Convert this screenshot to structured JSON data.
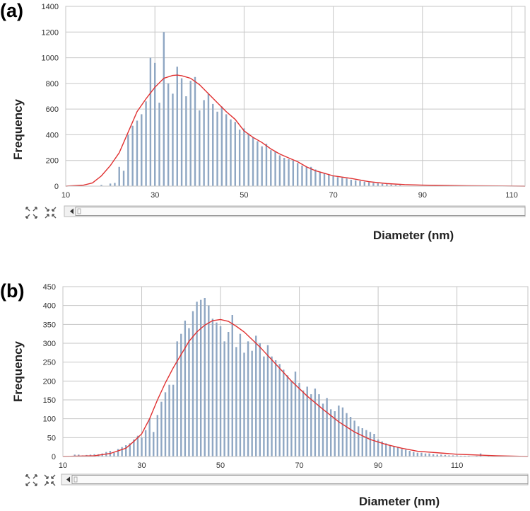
{
  "chart_data": [
    {
      "type": "bar",
      "panel_label": "(a)",
      "xlabel": "Diameter (nm)",
      "ylabel": "Frequency",
      "xlim": [
        10,
        113
      ],
      "ylim": [
        0,
        1400
      ],
      "xticks": [
        10,
        30,
        50,
        70,
        90,
        110
      ],
      "yticks": [
        0,
        200,
        400,
        600,
        800,
        1000,
        1200,
        1400
      ],
      "grid": true,
      "series": [
        {
          "name": "histogram",
          "type": "bar",
          "x": [
            18,
            20,
            21,
            22,
            23,
            24,
            25,
            26,
            27,
            28,
            29,
            30,
            31,
            32,
            33,
            34,
            35,
            36,
            37,
            38,
            39,
            40,
            41,
            42,
            43,
            44,
            45,
            46,
            47,
            48,
            49,
            50,
            51,
            52,
            53,
            54,
            55,
            56,
            57,
            58,
            59,
            60,
            61,
            62,
            63,
            64,
            65,
            66,
            67,
            68,
            69,
            70,
            71,
            72,
            73,
            74,
            75,
            76,
            77,
            78,
            79,
            80,
            81,
            82,
            83,
            84,
            85
          ],
          "values": [
            10,
            20,
            25,
            150,
            120,
            400,
            470,
            510,
            560,
            660,
            1000,
            960,
            650,
            1200,
            800,
            720,
            930,
            840,
            700,
            820,
            850,
            590,
            670,
            720,
            640,
            580,
            620,
            560,
            520,
            500,
            440,
            450,
            410,
            380,
            350,
            310,
            330,
            280,
            270,
            240,
            220,
            210,
            200,
            180,
            160,
            150,
            150,
            130,
            110,
            100,
            90,
            80,
            70,
            65,
            60,
            50,
            45,
            40,
            35,
            30,
            25,
            22,
            18,
            15,
            12,
            10,
            8
          ]
        },
        {
          "name": "fit",
          "type": "line",
          "x": [
            10,
            14,
            16,
            18,
            20,
            22,
            24,
            26,
            28,
            30,
            32,
            34,
            35,
            36,
            38,
            40,
            42,
            44,
            46,
            48,
            50,
            52,
            54,
            56,
            58,
            60,
            62,
            64,
            66,
            68,
            70,
            74,
            78,
            82,
            86,
            90,
            100,
            113
          ],
          "values": [
            0,
            8,
            25,
            80,
            160,
            260,
            420,
            580,
            680,
            770,
            840,
            862,
            865,
            860,
            840,
            790,
            720,
            650,
            580,
            520,
            430,
            380,
            340,
            290,
            250,
            220,
            190,
            150,
            120,
            100,
            80,
            60,
            35,
            20,
            12,
            8,
            3,
            0
          ]
        }
      ]
    },
    {
      "type": "bar",
      "panel_label": "(b)",
      "xlabel": "Diameter (nm)",
      "ylabel": "Frequency",
      "xlim": [
        10,
        128
      ],
      "ylim": [
        0,
        450
      ],
      "xticks": [
        10,
        30,
        50,
        70,
        90,
        110
      ],
      "yticks": [
        0,
        50,
        100,
        150,
        200,
        250,
        300,
        350,
        400,
        450
      ],
      "grid": true,
      "series": [
        {
          "name": "histogram",
          "type": "bar",
          "x": [
            13,
            14,
            15,
            16,
            17,
            18,
            19,
            20,
            21,
            22,
            23,
            24,
            25,
            26,
            27,
            28,
            29,
            30,
            31,
            32,
            33,
            34,
            35,
            36,
            37,
            38,
            39,
            40,
            41,
            42,
            43,
            44,
            45,
            46,
            47,
            48,
            49,
            50,
            51,
            52,
            53,
            54,
            55,
            56,
            57,
            58,
            59,
            60,
            61,
            62,
            63,
            64,
            65,
            66,
            67,
            68,
            69,
            70,
            71,
            72,
            73,
            74,
            75,
            76,
            77,
            78,
            79,
            80,
            81,
            82,
            83,
            84,
            85,
            86,
            87,
            88,
            89,
            90,
            91,
            92,
            93,
            94,
            95,
            96,
            97,
            98,
            99,
            100,
            101,
            102,
            103,
            104,
            105,
            106,
            107,
            108,
            109,
            110,
            111,
            112,
            113,
            115,
            116,
            118,
            120,
            125
          ],
          "values": [
            5,
            5,
            3,
            4,
            5,
            6,
            6,
            8,
            12,
            15,
            10,
            20,
            25,
            30,
            35,
            45,
            55,
            50,
            70,
            100,
            65,
            110,
            145,
            170,
            190,
            190,
            305,
            325,
            360,
            340,
            385,
            410,
            415,
            420,
            400,
            365,
            355,
            345,
            305,
            330,
            375,
            290,
            325,
            275,
            305,
            280,
            320,
            300,
            265,
            295,
            265,
            255,
            245,
            230,
            215,
            200,
            225,
            195,
            175,
            185,
            165,
            180,
            165,
            140,
            155,
            125,
            120,
            135,
            130,
            115,
            105,
            95,
            80,
            75,
            70,
            65,
            60,
            45,
            40,
            35,
            30,
            28,
            25,
            20,
            18,
            15,
            12,
            10,
            10,
            8,
            8,
            6,
            5,
            5,
            4,
            3,
            3,
            3,
            2,
            2,
            2,
            2,
            8,
            2,
            2,
            1
          ]
        },
        {
          "name": "fit",
          "type": "line",
          "x": [
            10,
            18,
            22,
            26,
            28,
            30,
            32,
            34,
            36,
            38,
            40,
            42,
            44,
            46,
            48,
            50,
            52,
            54,
            56,
            58,
            60,
            64,
            68,
            72,
            76,
            80,
            84,
            88,
            92,
            96,
            100,
            110,
            120,
            128
          ],
          "values": [
            0,
            2,
            8,
            22,
            40,
            60,
            100,
            150,
            195,
            235,
            270,
            305,
            330,
            348,
            360,
            363,
            358,
            345,
            330,
            310,
            290,
            245,
            200,
            160,
            125,
            92,
            65,
            45,
            32,
            22,
            14,
            6,
            2,
            0
          ]
        }
      ]
    }
  ]
}
